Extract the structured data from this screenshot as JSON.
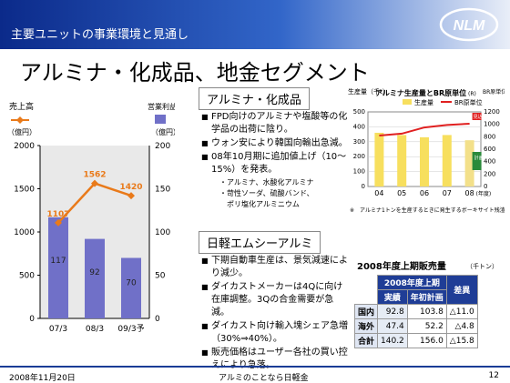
{
  "header": {
    "subtitle": "主要ユニットの事業環境と見通し",
    "logo_text": "NLM"
  },
  "title": "アルミナ・化成品、地金セグメント",
  "left_chart": {
    "left_axis_title": "売上高",
    "left_axis_unit": "（億円）",
    "right_axis_title": "営業利益",
    "right_axis_unit": "（億円）",
    "left_ticks": [
      "2000",
      "1500",
      "1000",
      "500",
      "0"
    ],
    "right_ticks": [
      "200",
      "150",
      "100",
      "50",
      "0"
    ],
    "categories": [
      "07/3",
      "08/3",
      "09/3予"
    ],
    "profit_values": [
      117,
      92,
      70
    ],
    "sales_values": [
      1107,
      1562,
      1420
    ],
    "line_color": "#e97a1a",
    "bar_color": "#7070c8"
  },
  "section1": {
    "heading": "アルミナ・化成品",
    "bullets": [
      "FPD向けのアルミナや塩酸等の化学品の出荷に陰り。",
      "ウォン安により韓国向輸出急減。",
      "08年10月期に追加値上げ（10～15%）を発表。"
    ],
    "sub": [
      "・アルミナ、水酸化アルミナ",
      "・苛性ソーダ、硫酸バンド、",
      "　ポリ塩化アルミニウム"
    ]
  },
  "section2": {
    "heading": "日軽エムシーアルミ",
    "bullets": [
      "下期自動車生産は、景気減速により減少。",
      "ダイカストメーカーは4Qに向け在庫調整。3Qの合金需要が急減。",
      "ダイカスト向け輸入塊シェア急増（30%⇒40%）。",
      "販売価格はユーザー各社の買い控えにより急落。"
    ]
  },
  "right_chart": {
    "title": "アルミナ生産量とBR原単位",
    "unit_note": "(R)",
    "left_label": "生産量（千t）",
    "right_label": "BR原単位（kg）",
    "legend_bar": "生産量",
    "legend_line": "BR原単位",
    "categories": [
      "04",
      "05",
      "06",
      "07",
      "08"
    ],
    "cat_suffix": "(年度)",
    "left_ticks": [
      "500",
      "400",
      "300",
      "200",
      "100",
      "0"
    ],
    "right_ticks": [
      "1200",
      "1000",
      "800",
      "600",
      "400",
      "200",
      "0"
    ],
    "bar_values": [
      360,
      345,
      330,
      345,
      310
    ],
    "line_values": [
      820,
      850,
      950,
      990,
      1010
    ],
    "footnote": "※　アルミナ1トンを生産するときに発生するボーキサイト残渣(BR)の量",
    "label_mikomi": "見込",
    "label_keikaku": "計画"
  },
  "sales_table": {
    "title": "2008年度上期販売量",
    "unit": "（千トン）",
    "group": "2008年度上期",
    "col_actual": "実績",
    "col_plan": "年初計画",
    "col_diff": "差異",
    "rows": [
      {
        "name": "国内",
        "actual": "92.8",
        "plan": "103.8",
        "diff": "△11.0"
      },
      {
        "name": "海外",
        "actual": "47.4",
        "plan": "52.2",
        "diff": "△4.8"
      },
      {
        "name": "合計",
        "actual": "140.2",
        "plan": "156.0",
        "diff": "△15.8"
      }
    ]
  },
  "footer": {
    "date": "2008年11月20日",
    "tagline": "アルミのことなら日軽金",
    "page": "12"
  }
}
